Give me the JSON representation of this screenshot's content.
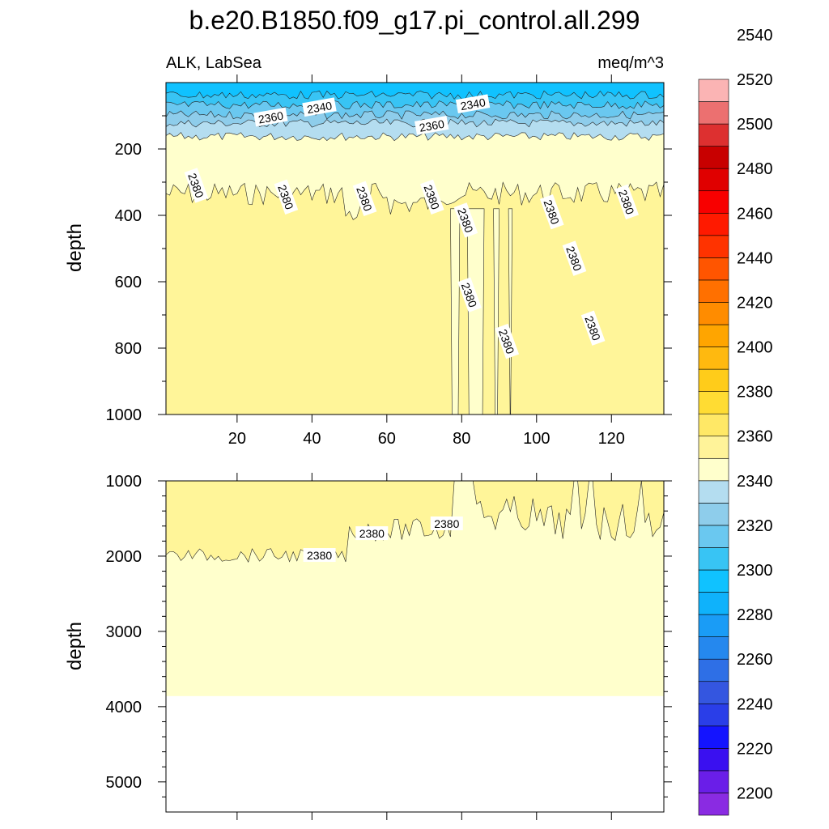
{
  "chart_data": {
    "type": "contour",
    "title": "b.e20.B1850.f09_g17.pi_control.all.299",
    "left_subtitle": "ALK, LabSea",
    "right_subtitle": "meq/m^3",
    "ylabel": "depth",
    "upper_panel": {
      "ylim": [
        0,
        1000
      ],
      "yticks": [
        200,
        400,
        600,
        800,
        1000
      ],
      "xlim": [
        1,
        134
      ],
      "xticks": [
        20,
        40,
        60,
        80,
        100,
        120
      ],
      "contour_labels": [
        {
          "text": "2340",
          "x": 42,
          "y": 75
        },
        {
          "text": "2340",
          "x": 83,
          "y": 65
        },
        {
          "text": "2360",
          "x": 29,
          "y": 105
        },
        {
          "text": "2360",
          "x": 72,
          "y": 130
        },
        {
          "text": "2380",
          "x": 9,
          "y": 310
        },
        {
          "text": "2380",
          "x": 33,
          "y": 345
        },
        {
          "text": "2380",
          "x": 54,
          "y": 350
        },
        {
          "text": "2380",
          "x": 72,
          "y": 345
        },
        {
          "text": "2380",
          "x": 81,
          "y": 415
        },
        {
          "text": "2380",
          "x": 104,
          "y": 390
        },
        {
          "text": "2380",
          "x": 124,
          "y": 360
        },
        {
          "text": "2380",
          "x": 82,
          "y": 640
        },
        {
          "text": "2380",
          "x": 110,
          "y": 530
        },
        {
          "text": "2380",
          "x": 92,
          "y": 780
        },
        {
          "text": "2380",
          "x": 115,
          "y": 740
        }
      ]
    },
    "lower_panel": {
      "ylim": [
        1000,
        5400
      ],
      "yticks": [
        1000,
        2000,
        3000,
        4000,
        5000
      ],
      "xlim": [
        1,
        134
      ],
      "bottom_depth": 3860,
      "contour_labels": [
        {
          "text": "2380",
          "x": 42,
          "y": 1990
        },
        {
          "text": "2380",
          "x": 56,
          "y": 1700
        },
        {
          "text": "2380",
          "x": 76,
          "y": 1570
        }
      ]
    },
    "colorbar": {
      "min": 2190,
      "max": 2560,
      "step": 10,
      "tick_labels": [
        "2200",
        "2220",
        "2240",
        "2260",
        "2280",
        "2300",
        "2320",
        "2340",
        "2360",
        "2380",
        "2400",
        "2420",
        "2440",
        "2460",
        "2480",
        "2500",
        "2520",
        "2540"
      ],
      "colors": [
        "#8a2be2",
        "#6a1ee8",
        "#3a10f0",
        "#1414ff",
        "#2a3ee8",
        "#3456e0",
        "#2e6fe6",
        "#2588ee",
        "#1a9cf6",
        "#0fb2fb",
        "#10c2ff",
        "#38c4f4",
        "#6ac8f0",
        "#8ecdeb",
        "#b4ddf0",
        "#ffffcc",
        "#fff399",
        "#ffe866",
        "#ffdc33",
        "#ffcc1a",
        "#ffb90f",
        "#ffa500",
        "#ff8c00",
        "#ff7000",
        "#ff5500",
        "#ff3300",
        "#ff1a00",
        "#f80000",
        "#e00000",
        "#c80000",
        "#dd3030",
        "#ec7070",
        "#fbb4b4"
      ]
    }
  }
}
